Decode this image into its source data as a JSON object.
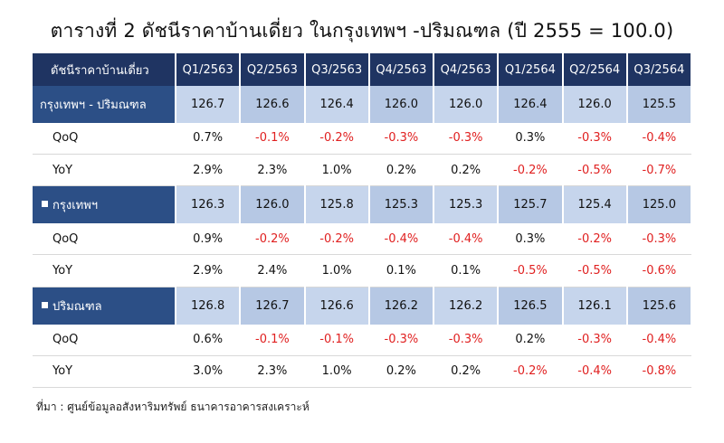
{
  "title": "ตารางที่ 2 ดัชนีราคาบ้านเดี่ยว ในกรุงเทพฯ -ปริมณฑล (ปี 2555 = 100.0)",
  "table": {
    "header_label": "ดัชนีราคาบ้านเดี่ยว",
    "columns": [
      "Q1/2563",
      "Q2/2563",
      "Q3/2563",
      "Q4/2563",
      "Q4/2563",
      "Q1/2564",
      "Q2/2564",
      "Q3/2564"
    ],
    "groups": [
      {
        "name": "กรุงเทพฯ - ปริมณฑล",
        "index": [
          "126.7",
          "126.6",
          "126.4",
          "126.0",
          "126.0",
          "126.4",
          "126.0",
          "125.5"
        ],
        "qoq_label": "QoQ",
        "qoq": [
          "0.7%",
          "-0.1%",
          "-0.2%",
          "-0.3%",
          "-0.3%",
          "0.3%",
          "-0.3%",
          "-0.4%"
        ],
        "yoy_label": "YoY",
        "yoy": [
          "2.9%",
          "2.3%",
          "1.0%",
          "0.2%",
          "0.2%",
          "-0.2%",
          "-0.5%",
          "-0.7%"
        ]
      },
      {
        "name": "กรุงเทพฯ",
        "index": [
          "126.3",
          "126.0",
          "125.8",
          "125.3",
          "125.3",
          "125.7",
          "125.4",
          "125.0"
        ],
        "qoq_label": "QoQ",
        "qoq": [
          "0.9%",
          "-0.2%",
          "-0.2%",
          "-0.4%",
          "-0.4%",
          "0.3%",
          "-0.2%",
          "-0.3%"
        ],
        "yoy_label": "YoY",
        "yoy": [
          "2.9%",
          "2.4%",
          "1.0%",
          "0.1%",
          "0.1%",
          "-0.5%",
          "-0.5%",
          "-0.6%"
        ]
      },
      {
        "name": "ปริมณฑล",
        "index": [
          "126.8",
          "126.7",
          "126.6",
          "126.2",
          "126.2",
          "126.5",
          "126.1",
          "125.6"
        ],
        "qoq_label": "QoQ",
        "qoq": [
          "0.6%",
          "-0.1%",
          "-0.1%",
          "-0.3%",
          "-0.3%",
          "0.2%",
          "-0.3%",
          "-0.4%"
        ],
        "yoy_label": "YoY",
        "yoy": [
          "3.0%",
          "2.3%",
          "1.0%",
          "0.2%",
          "0.2%",
          "-0.2%",
          "-0.4%",
          "-0.8%"
        ]
      }
    ]
  },
  "source": "ที่มา : ศูนย์ข้อมูลอสังหาริมทรัพย์ ธนาคารอาคารสงเคราะห์",
  "colors": {
    "header_bg": "#1f3462",
    "region_label_bg": "#2c4f86",
    "region_value_bg": "#c6d5ec",
    "negative_text": "#e02020"
  }
}
